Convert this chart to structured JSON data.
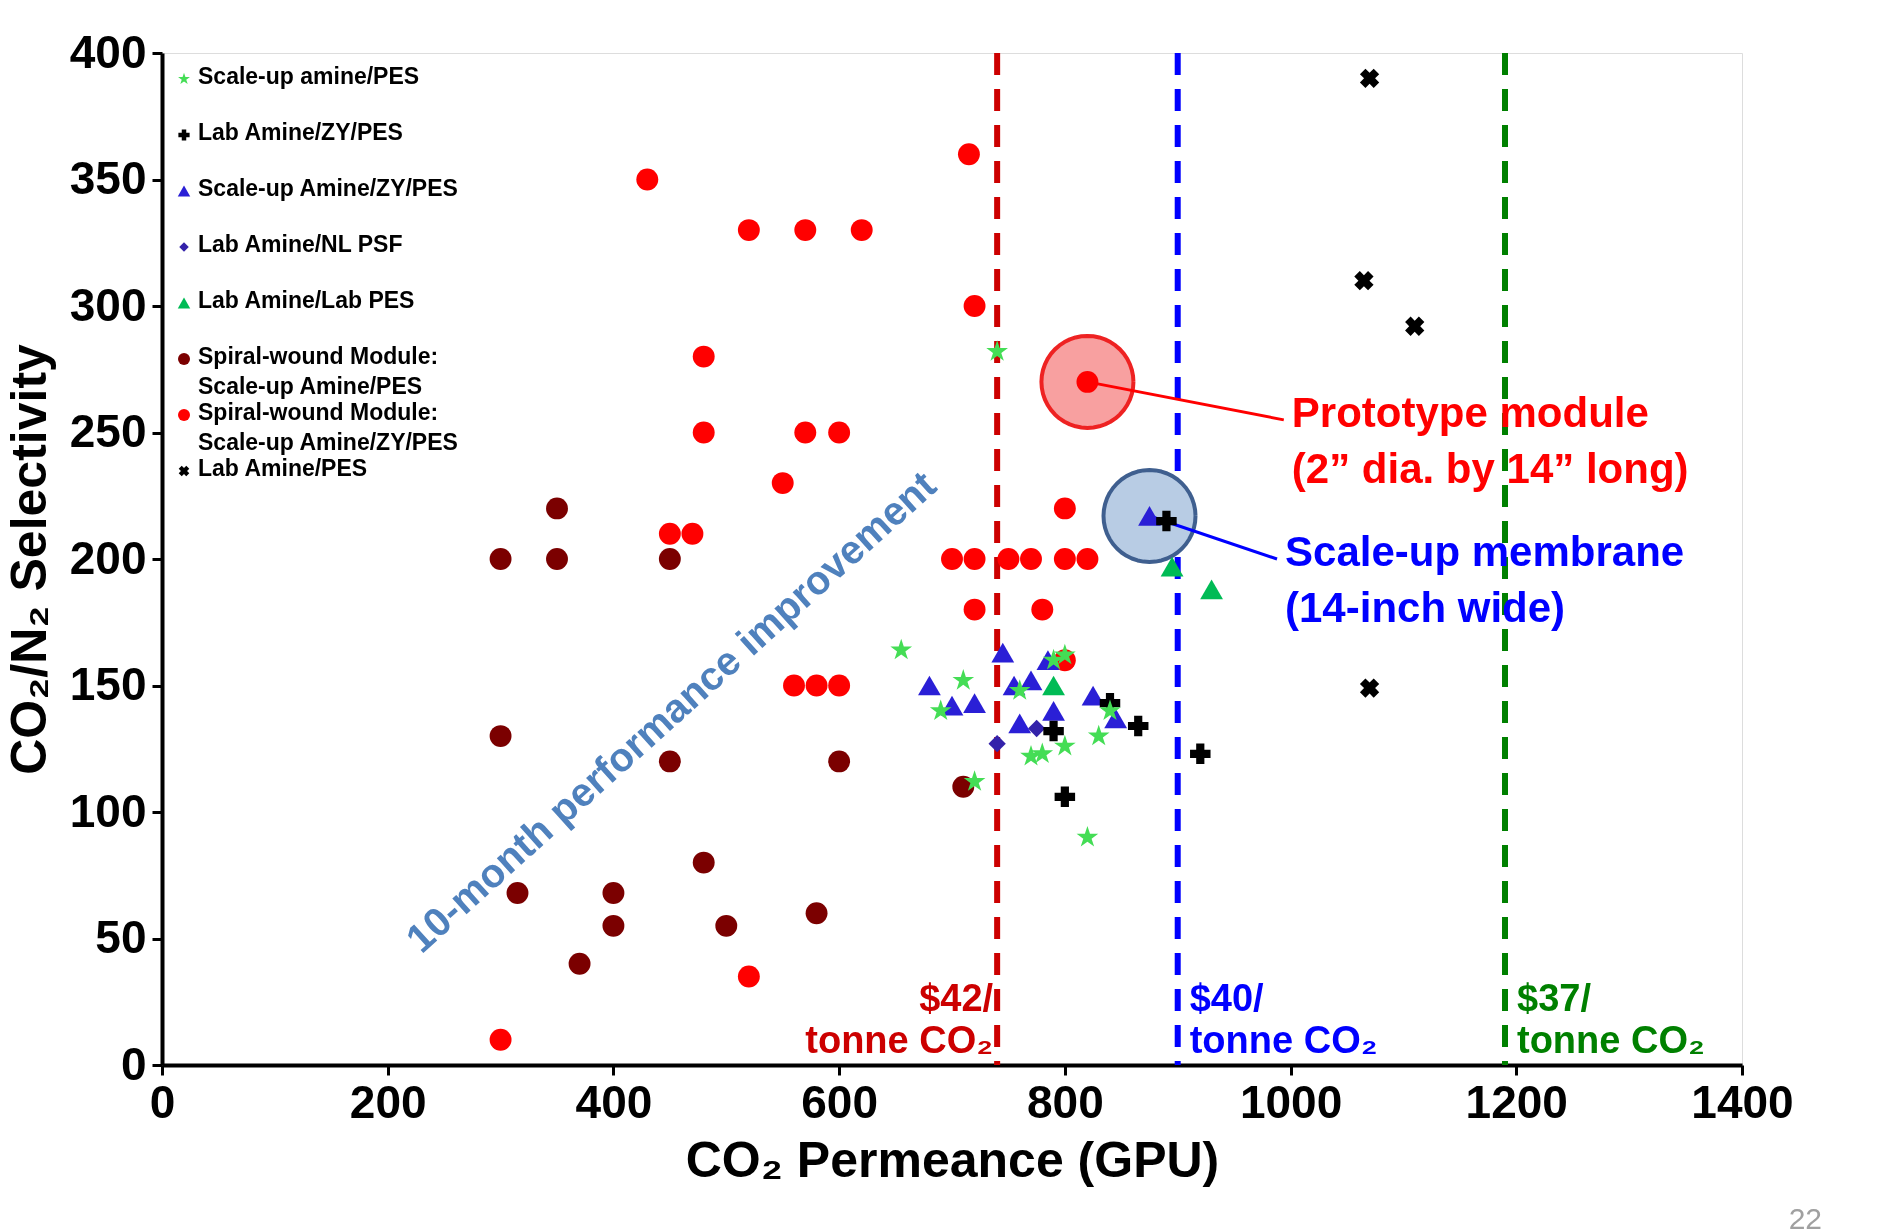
{
  "chart_data": {
    "type": "scatter",
    "xlabel": "CO₂ Permeance (GPU)",
    "ylabel": "CO₂/N₂ Selectivity",
    "xlim": [
      0,
      1400
    ],
    "ylim": [
      0,
      400
    ],
    "xticks": [
      0,
      200,
      400,
      600,
      800,
      1000,
      1200,
      1400
    ],
    "yticks": [
      0,
      50,
      100,
      150,
      200,
      250,
      300,
      350,
      400
    ],
    "grid": false,
    "legend": "top left",
    "series": [
      {
        "name": "Scale-up amine/PES",
        "color": "#44dd55",
        "marker": "star",
        "x": [
          740,
          655,
          710,
          690,
          720,
          800,
          790,
          770,
          780,
          800,
          830,
          840,
          820,
          760
        ],
        "values": [
          282,
          164,
          152,
          140,
          112,
          162,
          160,
          122,
          123,
          126,
          130,
          140,
          90,
          148
        ]
      },
      {
        "name": "Lab Amine/ZY/PES",
        "color": "#000000",
        "marker": "cross",
        "x": [
          790,
          800,
          840,
          865,
          920,
          890
        ],
        "values": [
          132,
          106,
          143,
          134,
          123,
          215
        ]
      },
      {
        "name": "Scale-up Amine/ZY/PES",
        "color": "#2a1fd6",
        "marker": "triangle",
        "x": [
          680,
          700,
          720,
          745,
          755,
          770,
          785,
          790,
          760,
          825,
          845,
          875
        ],
        "values": [
          150,
          142,
          143,
          163,
          150,
          152,
          160,
          140,
          135,
          146,
          137,
          217
        ]
      },
      {
        "name": "Lab Amine/NL PSF",
        "color": "#3322aa",
        "marker": "diamond",
        "x": [
          740,
          775
        ],
        "values": [
          127,
          133
        ]
      },
      {
        "name": "Lab Amine/Lab PES",
        "color": "#00bb55",
        "marker": "triangle",
        "x": [
          790,
          895,
          930
        ],
        "values": [
          150,
          197,
          188
        ]
      },
      {
        "name": "Spiral-wound Module: Scale-up Amine/PES",
        "color": "#7b0000",
        "marker": "circle",
        "x": [
          300,
          350,
          350,
          450,
          300,
          450,
          600,
          710,
          315,
          400,
          400,
          480,
          500,
          370,
          580
        ],
        "values": [
          200,
          200,
          220,
          200,
          130,
          120,
          120,
          110,
          68,
          68,
          55,
          80,
          55,
          40,
          60
        ]
      },
      {
        "name": "Spiral-wound Module: Scale-up Amine/ZY/PES",
        "color": "#ff0000",
        "marker": "circle",
        "x": [
          430,
          715,
          520,
          570,
          620,
          720,
          480,
          820,
          480,
          570,
          600,
          550,
          450,
          470,
          800,
          700,
          720,
          750,
          770,
          800,
          820,
          720,
          780,
          800,
          560,
          580,
          600,
          520,
          300
        ],
        "values": [
          350,
          360,
          330,
          330,
          330,
          300,
          280,
          270,
          250,
          250,
          250,
          230,
          210,
          210,
          220,
          200,
          200,
          200,
          200,
          200,
          200,
          180,
          180,
          160,
          150,
          150,
          150,
          35,
          10
        ]
      },
      {
        "name": "Lab Amine/PES",
        "color": "#000000",
        "marker": "x",
        "x": [
          1070,
          1065,
          1110,
          1070
        ],
        "values": [
          390,
          310,
          292,
          149
        ]
      }
    ],
    "ref_lines": [
      {
        "axis": "x",
        "value": 740,
        "label": "$42/\ntonne CO₂",
        "color": "#cc0000",
        "line_style": "dashed"
      },
      {
        "axis": "x",
        "value": 900,
        "label": "$40/\ntonne CO₂",
        "color": "#0000ff",
        "line_style": "dashed"
      },
      {
        "axis": "x",
        "value": 1190,
        "label": "$37/\ntonne CO₂",
        "color": "#008000",
        "line_style": "dashed"
      }
    ],
    "annotations": [
      {
        "text": "Prototype module\n(2” dia. by 14” long)",
        "x": 820,
        "y": 270
      },
      {
        "text": "Scale-up membrane\n(14-inch wide)",
        "x": 875,
        "y": 217
      },
      "10-month performance improvement",
      "22"
    ]
  }
}
